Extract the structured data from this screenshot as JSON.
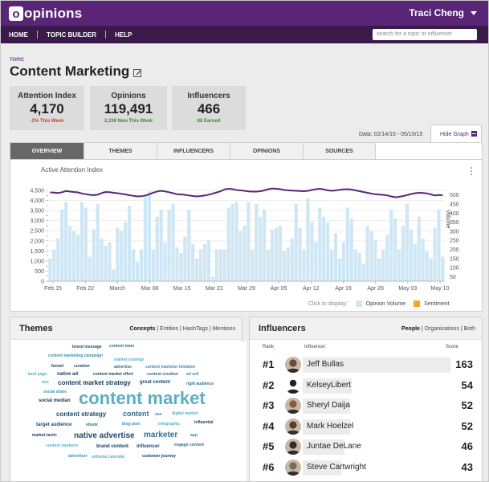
{
  "app": {
    "brand": "opinions",
    "logo_letter": "o",
    "user_name": "Traci Cheng"
  },
  "nav": {
    "items": [
      "HOME",
      "TOPIC BUILDER",
      "HELP"
    ],
    "search_placeholder": "search for a topic or influencer"
  },
  "topic": {
    "label": "TOPIC",
    "title": "Content Marketing"
  },
  "stats": [
    {
      "label": "Attention Index",
      "value": "4,170",
      "sub": "-2% This Week",
      "sub_color": "#d03a2a"
    },
    {
      "label": "Opinions",
      "value": "119,491",
      "sub": "2,338 New This Week",
      "sub_color": "#3c8c2e"
    },
    {
      "label": "Influencers",
      "value": "466",
      "sub": "88 Earned",
      "sub_color": "#3c8c2e"
    }
  ],
  "date_range": "Data: 02/14/15 - 05/15/15",
  "hide_graph_label": "Hide Graph",
  "tabs": [
    "OVERVIEW",
    "THEMES",
    "INFLUENCERS",
    "OPINIONS",
    "SOURCES"
  ],
  "active_tab": 0,
  "chart_title": "Active Attention Index",
  "legend": {
    "prefix": "Click to display:",
    "items": [
      "Opinion Volume",
      "Sentiment"
    ],
    "colors": [
      "#cfe6f4",
      "#f5a623"
    ]
  },
  "chart_data": {
    "type": "bar+line",
    "x_ticks": [
      "Feb 15",
      "Feb 22",
      "March",
      "Mar 08",
      "Mar 15",
      "Mar 22",
      "Mar 29",
      "Apr 05",
      "Apr 12",
      "Apr 19",
      "Apr 26",
      "May 03",
      "May 10"
    ],
    "y_left_ticks": [
      "0",
      "250",
      "500",
      "750",
      "1,000",
      "1,250",
      "1,500",
      "1,750",
      "2,000",
      "2,250",
      "2,500",
      "2,750",
      "3,000",
      "3,250",
      "3,500",
      "3,750",
      "4,000",
      "4,250",
      "4,500"
    ],
    "y_left_range": [
      0,
      4500
    ],
    "y_right_label": "Volume",
    "y_right_ticks": [
      "50",
      "100",
      "150",
      "200",
      "250",
      "300",
      "350",
      "400",
      "450",
      "500"
    ],
    "y_right_range": [
      25,
      525
    ],
    "bar_color": "#cfe6f4",
    "line_color": "#5a2577",
    "series": [
      {
        "name": "Opinion Volume",
        "axis": "right",
        "values": [
          150,
          200,
          260,
          420,
          460,
          330,
          300,
          280,
          460,
          430,
          160,
          310,
          450,
          260,
          220,
          240,
          90,
          320,
          300,
          350,
          440,
          200,
          130,
          200,
          500,
          520,
          200,
          380,
          420,
          240,
          420,
          450,
          210,
          180,
          270,
          420,
          230,
          150,
          200,
          230,
          250,
          50,
          200,
          200,
          200,
          430,
          450,
          460,
          300,
          330,
          460,
          200,
          450,
          380,
          420,
          200,
          310,
          320,
          330,
          190,
          210,
          260,
          450,
          320,
          200,
          480,
          350,
          240,
          430,
          380,
          350,
          200,
          290,
          150,
          240,
          430,
          370,
          200,
          180,
          120,
          330,
          300,
          250,
          150,
          200,
          280,
          420,
          370,
          200,
          330,
          450,
          310,
          230,
          380,
          260,
          190,
          150,
          320,
          420,
          160
        ]
      },
      {
        "name": "Attention Index",
        "axis": "left",
        "values": [
          4400,
          4390,
          4370,
          4410,
          4470,
          4440,
          4420,
          4400,
          4350,
          4310,
          4280,
          4260,
          4290,
          4370,
          4420,
          4410,
          4380,
          4360,
          4330,
          4300,
          4260,
          4230,
          4200,
          4210,
          4250,
          4310,
          4390,
          4450,
          4480,
          4450,
          4410,
          4360,
          4310,
          4300,
          4280,
          4250,
          4220,
          4200,
          4220,
          4250,
          4290,
          4340,
          4400,
          4460,
          4550,
          4580,
          4560,
          4520,
          4500,
          4480,
          4450,
          4440,
          4440,
          4460,
          4500,
          4560,
          4590,
          4580,
          4560,
          4520,
          4500,
          4490,
          4480,
          4470,
          4460,
          4480,
          4520,
          4560,
          4580,
          4550,
          4500,
          4480,
          4500,
          4530,
          4550,
          4560,
          4540,
          4500,
          4460,
          4420,
          4380,
          4340,
          4310,
          4290,
          4280,
          4250,
          4200,
          4160,
          4180,
          4220,
          4270,
          4320,
          4360,
          4380,
          4370,
          4350,
          4300,
          4250,
          4270,
          4260
        ]
      }
    ]
  },
  "themes": {
    "title": "Themes",
    "filters": [
      "Concepts",
      "Entities",
      "HashTags",
      "Mentions"
    ],
    "words": [
      "brand message",
      "content team",
      "content marketing campaign",
      "market strategy",
      "funnel",
      "curation",
      "advertise",
      "content marketer initiative",
      "land page",
      "native ad",
      "content market effort",
      "content creation",
      "ad sell",
      "one",
      "content market strategy",
      "great content",
      "right audience",
      "social share",
      "content market",
      "social median",
      "content strategy",
      "content",
      "seo",
      "digital market",
      "influential",
      "target audience",
      "ebook",
      "blog post",
      "infographic",
      "market tactic",
      "native advertise",
      "marketer",
      "app",
      "content marketer",
      "brand content",
      "influencer",
      "engage content",
      "advertiser",
      "editorial calendar",
      "customer journey"
    ],
    "word_colors": [
      "#1e4a6e",
      "#2e6f8f",
      "#3a8fb0",
      "#5aaec5",
      "#153a58"
    ]
  },
  "influencers": {
    "title": "Influencers",
    "filters": [
      "People",
      "Organizations",
      "Both"
    ],
    "columns": [
      "Rank",
      "Influencer",
      "Score"
    ],
    "rows": [
      {
        "rank": "#1",
        "name": "Jeff Bullas",
        "score": "163",
        "share": 1.0
      },
      {
        "rank": "#2",
        "name": "KelseyLibert",
        "score": "54",
        "share": 0.33
      },
      {
        "rank": "#3",
        "name": "Sheryl Daija",
        "score": "52",
        "share": 0.32
      },
      {
        "rank": "#4",
        "name": "Mark Hoelzel",
        "score": "52",
        "share": 0.32
      },
      {
        "rank": "#5",
        "name": "Juntae DeLane",
        "score": "46",
        "share": 0.28
      },
      {
        "rank": "#6",
        "name": "Steve Cartwright",
        "score": "43",
        "share": 0.26
      }
    ]
  }
}
